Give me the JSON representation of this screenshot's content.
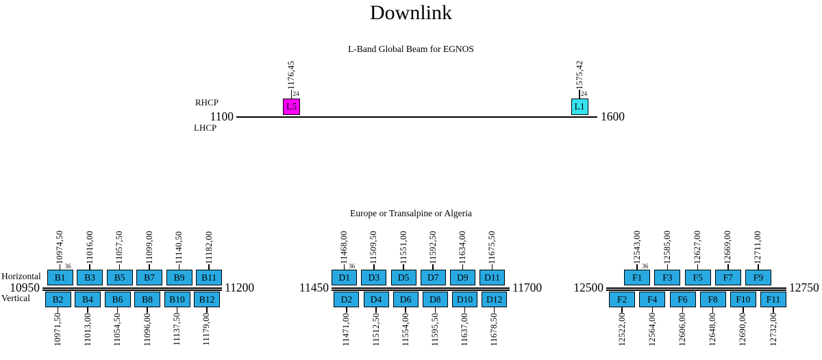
{
  "title": "Downlink",
  "colors": {
    "transponder": "#29A9E1",
    "l5": "#FF00FF",
    "l1": "#35E3EE",
    "line": "#000000"
  },
  "lband": {
    "subtitle": "L-Band Global Beam for EGNOS",
    "polarization_top": "RHCP",
    "polarization_bottom": "LHCP",
    "axis": {
      "min": 1100,
      "max": 1600,
      "min_label": "1100",
      "max_label": "1600"
    },
    "channels": [
      {
        "id": "L5",
        "freq": 1176.45,
        "freq_label": "1176,45",
        "bandwidth_mhz": 24,
        "bandwidth_label": "24",
        "color_key": "l5"
      },
      {
        "id": "L1",
        "freq": 1575.42,
        "freq_label": "1575,42",
        "bandwidth_mhz": 24,
        "bandwidth_label": "24",
        "color_key": "l1"
      }
    ]
  },
  "groups": [
    {
      "name": "B",
      "header": "",
      "row_top_label": "Horizontal",
      "row_bottom_label": "Vertical",
      "axis": {
        "min": 10950,
        "max": 11200,
        "min_label": "10950",
        "max_label": "11200"
      },
      "bandwidth_mhz": 36,
      "bandwidth_label": "36",
      "top_row": [
        {
          "id": "B1",
          "freq": 10974.5,
          "freq_label": "10974,50"
        },
        {
          "id": "B3",
          "freq": 11016.0,
          "freq_label": "11016,00"
        },
        {
          "id": "B5",
          "freq": 11057.5,
          "freq_label": "11057,50"
        },
        {
          "id": "B7",
          "freq": 11099.0,
          "freq_label": "11099,00"
        },
        {
          "id": "B9",
          "freq": 11140.5,
          "freq_label": "11140,50"
        },
        {
          "id": "B11",
          "freq": 11182.0,
          "freq_label": "11182,00"
        }
      ],
      "bottom_row": [
        {
          "id": "B2",
          "freq": 10971.5,
          "freq_label": "10971,50"
        },
        {
          "id": "B4",
          "freq": 11013.0,
          "freq_label": "11013,00"
        },
        {
          "id": "B6",
          "freq": 11054.5,
          "freq_label": "11054,50"
        },
        {
          "id": "B8",
          "freq": 11096.0,
          "freq_label": "11096,00"
        },
        {
          "id": "B10",
          "freq": 11137.5,
          "freq_label": "11137,50"
        },
        {
          "id": "B12",
          "freq": 11179.0,
          "freq_label": "11179,00"
        }
      ]
    },
    {
      "name": "D",
      "header": "Europe or Transalpine or Algeria",
      "row_top_label": "",
      "row_bottom_label": "",
      "axis": {
        "min": 11450,
        "max": 11700,
        "min_label": "11450",
        "max_label": "11700"
      },
      "bandwidth_mhz": 36,
      "bandwidth_label": "36",
      "top_row": [
        {
          "id": "D1",
          "freq": 11468.0,
          "freq_label": "11468,00"
        },
        {
          "id": "D3",
          "freq": 11509.5,
          "freq_label": "11509,50"
        },
        {
          "id": "D5",
          "freq": 11551.0,
          "freq_label": "11551,00"
        },
        {
          "id": "D7",
          "freq": 11592.5,
          "freq_label": "11592,50"
        },
        {
          "id": "D9",
          "freq": 11634.0,
          "freq_label": "11634,00"
        },
        {
          "id": "D11",
          "freq": 11675.5,
          "freq_label": "11675,50"
        }
      ],
      "bottom_row": [
        {
          "id": "D2",
          "freq": 11471.0,
          "freq_label": "11471,00"
        },
        {
          "id": "D4",
          "freq": 11512.5,
          "freq_label": "11512,50"
        },
        {
          "id": "D6",
          "freq": 11554.0,
          "freq_label": "11554,00"
        },
        {
          "id": "D8",
          "freq": 11595.5,
          "freq_label": "11595,50"
        },
        {
          "id": "D10",
          "freq": 11637.0,
          "freq_label": "11637,00"
        },
        {
          "id": "D12",
          "freq": 11678.5,
          "freq_label": "11678,50"
        }
      ]
    },
    {
      "name": "F",
      "header": "",
      "row_top_label": "",
      "row_bottom_label": "",
      "axis": {
        "min": 12500,
        "max": 12750,
        "min_label": "12500",
        "max_label": "12750"
      },
      "bandwidth_mhz": 36,
      "bandwidth_label": "36",
      "top_row": [
        {
          "id": "F1",
          "freq": 12543.0,
          "freq_label": "12543,00"
        },
        {
          "id": "F3",
          "freq": 12585.0,
          "freq_label": "12585,00"
        },
        {
          "id": "F5",
          "freq": 12627.0,
          "freq_label": "12627,00"
        },
        {
          "id": "F7",
          "freq": 12669.0,
          "freq_label": "12669,00"
        },
        {
          "id": "F9",
          "freq": 12711.0,
          "freq_label": "12711,00"
        }
      ],
      "bottom_row": [
        {
          "id": "F2",
          "freq": 12522.0,
          "freq_label": "12522,00"
        },
        {
          "id": "F4",
          "freq": 12564.0,
          "freq_label": "12564,00"
        },
        {
          "id": "F6",
          "freq": 12606.0,
          "freq_label": "12606,00"
        },
        {
          "id": "F8",
          "freq": 12648.0,
          "freq_label": "12648,00"
        },
        {
          "id": "F10",
          "freq": 12690.0,
          "freq_label": "12690,00"
        },
        {
          "id": "F11",
          "freq": 12732.0,
          "freq_label": "12732,00"
        }
      ]
    }
  ]
}
